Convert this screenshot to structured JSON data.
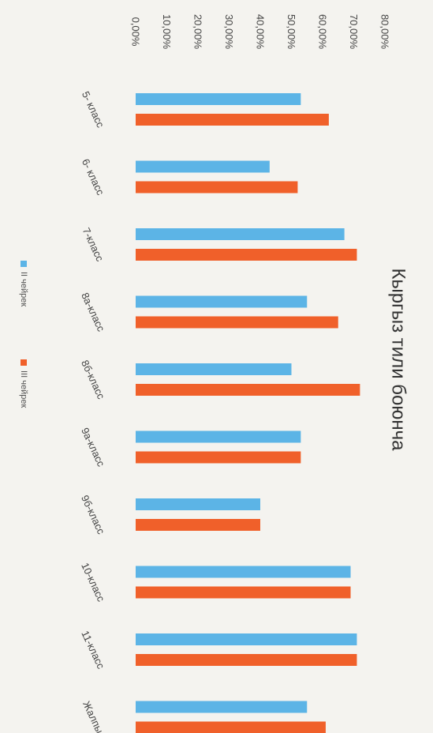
{
  "chart_data": {
    "type": "bar",
    "orientation": "horizontal",
    "title": "Кыргыз тили боюнча",
    "xlabel": "",
    "ylabel": "",
    "xlim": [
      0,
      80
    ],
    "ticks": [
      "0,00%",
      "10,00%",
      "20,00%",
      "30,00%",
      "40,00%",
      "50,00%",
      "60,00%",
      "70,00%",
      "80,00%"
    ],
    "categories": [
      "5- класс",
      "6- класс",
      "7-класс",
      "8а-класс",
      "8б-класс",
      "9а-класс",
      "9б-класс",
      "10-класс",
      "11-класс",
      "Жалпы"
    ],
    "series": [
      {
        "name": "II чейрек",
        "color": "#5cb4e6",
        "values": [
          53,
          43,
          67,
          55,
          50,
          53,
          40,
          69,
          71,
          55
        ]
      },
      {
        "name": "III чейрек",
        "color": "#f0602a",
        "values": [
          62,
          52,
          71,
          65,
          72,
          53,
          40,
          69,
          71,
          61
        ]
      }
    ],
    "grid": false,
    "legend_position": "bottom"
  }
}
